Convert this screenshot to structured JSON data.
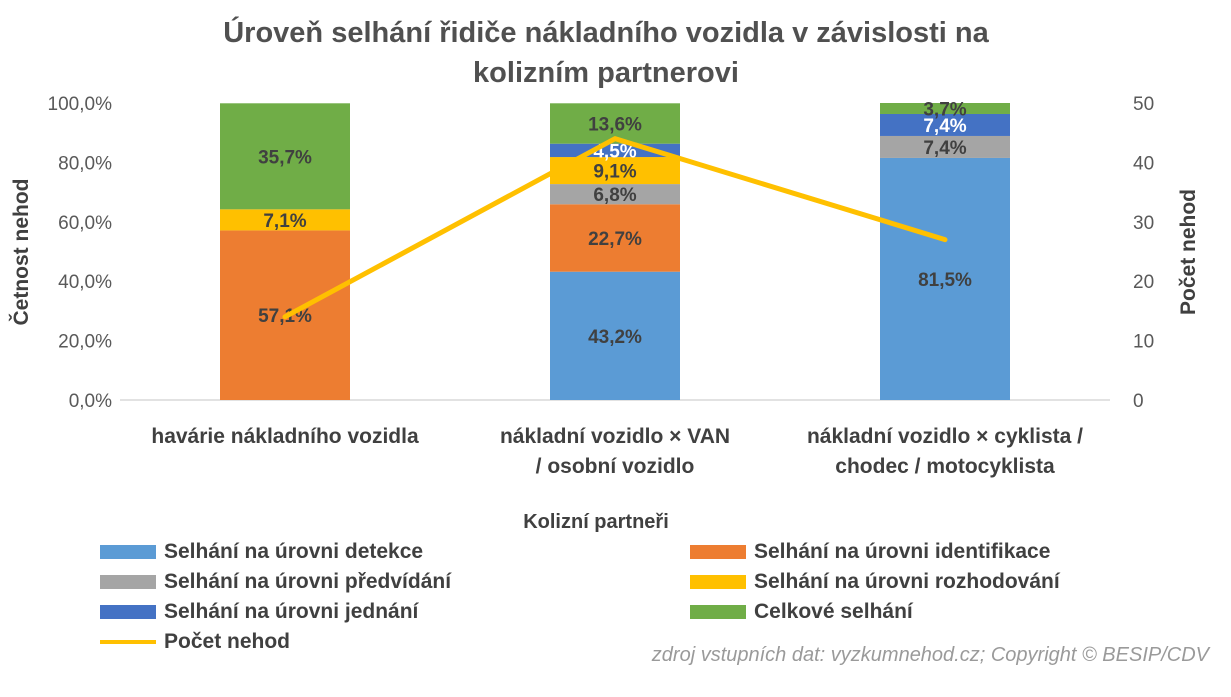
{
  "chart_data": {
    "type": "bar",
    "stacked": true,
    "title": "Úroveň selhání řidiče nákladního vozidla v závislosti na kolizním partnerovi",
    "title_lines": [
      "Úroveň selhání řidiče nákladního vozidla v závislosti na",
      "kolizním partnerovi"
    ],
    "xlabel": "Kolizní partneři",
    "ylabel": "Četnost nehod",
    "y2label": "Počet nehod",
    "ylim": [
      0,
      100
    ],
    "y2lim": [
      0,
      50
    ],
    "y_ticks": [
      "0,0%",
      "20,0%",
      "40,0%",
      "60,0%",
      "80,0%",
      "100,0%"
    ],
    "y2_ticks": [
      "0",
      "10",
      "20",
      "30",
      "40",
      "50"
    ],
    "categories": [
      [
        "havárie nákladního vozidla"
      ],
      [
        "nákladní vozidlo × VAN",
        "/ osobní vozidlo"
      ],
      [
        "nákladní vozidlo × cyklista /",
        "chodec / motocyklista"
      ]
    ],
    "series": [
      {
        "name": "Selhání na úrovni detekce",
        "color": "#5b9bd5",
        "values": [
          0,
          43.2,
          81.5
        ],
        "labels": [
          "",
          "43,2%",
          "81,5%"
        ],
        "label_color": "#404040"
      },
      {
        "name": "Selhání na úrovni identifikace",
        "color": "#ed7d31",
        "values": [
          57.1,
          22.7,
          0
        ],
        "labels": [
          "57,1%",
          "22,7%",
          ""
        ],
        "label_color": "#404040"
      },
      {
        "name": "Selhání na úrovni předvídání",
        "color": "#a5a5a5",
        "values": [
          0,
          6.8,
          7.4
        ],
        "labels": [
          "",
          "6,8%",
          "7,4%"
        ],
        "label_color": "#404040"
      },
      {
        "name": "Selhání na úrovni rozhodování",
        "color": "#ffc000",
        "values": [
          7.1,
          9.1,
          0
        ],
        "labels": [
          "7,1%",
          "9,1%",
          ""
        ],
        "label_color": "#404040"
      },
      {
        "name": "Selhání na úrovni jednání",
        "color": "#4472c4",
        "values": [
          0,
          4.5,
          7.4
        ],
        "labels": [
          "",
          "4,5%",
          "7,4%"
        ],
        "label_color": "#ffffff"
      },
      {
        "name": "Celkové selhání",
        "color": "#70ad47",
        "values": [
          35.7,
          13.6,
          3.7
        ],
        "labels": [
          "35,7%",
          "13,6%",
          "3,7%"
        ],
        "label_color": "#404040"
      }
    ],
    "line_series": {
      "name": "Počet nehod",
      "color": "#ffc000",
      "axis": "secondary",
      "values": [
        14,
        44,
        27
      ]
    },
    "legend_position": "bottom",
    "grid": false
  },
  "source_note": "zdroj vstupních dat: vyzkumnehod.cz; Copyright © BESIP/CDV"
}
